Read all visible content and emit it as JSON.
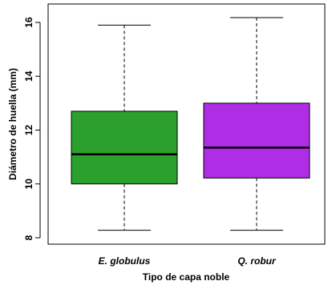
{
  "chart_data": {
    "type": "boxplot",
    "xlabel": "Tipo de capa noble",
    "ylabel": "Diámetro de huella  (mm)",
    "ylim": [
      8,
      16.4
    ],
    "yticks": [
      8,
      10,
      12,
      14,
      16
    ],
    "grid": false,
    "categories": [
      "E. globulus",
      "Q. robur"
    ],
    "boxes": [
      {
        "label": "E. globulus",
        "whisker_low": 8.28,
        "q1": 10.0,
        "median": 11.1,
        "q3": 12.7,
        "whisker_high": 15.9,
        "color": "#2ca02c"
      },
      {
        "label": "Q. robur",
        "whisker_low": 8.28,
        "q1": 10.22,
        "median": 11.35,
        "q3": 13.0,
        "whisker_high": 16.18,
        "color": "#b02de6"
      }
    ]
  }
}
